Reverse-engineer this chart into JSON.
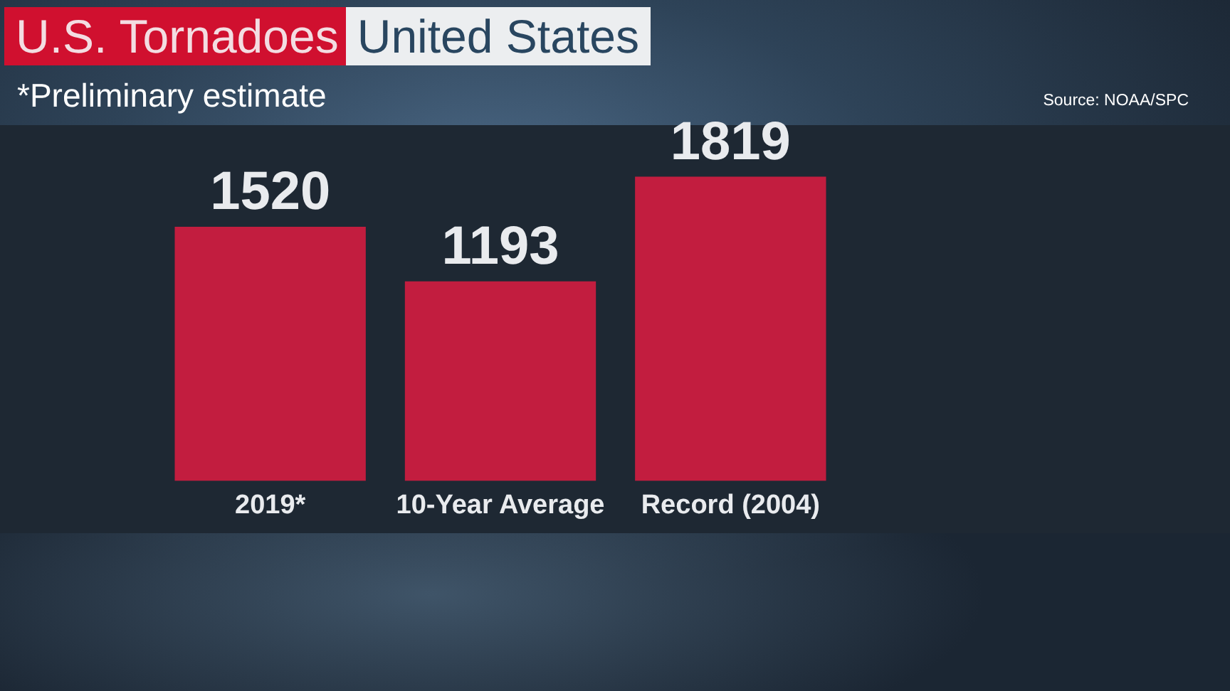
{
  "chart_data": {
    "type": "bar",
    "title": "U.S. Tornadoes",
    "subtitle": "United States",
    "annotations": [
      "*Preliminary estimate",
      "Source: NOAA/SPC"
    ],
    "categories": [
      "2019*",
      "10-Year Average",
      "Record (2004)"
    ],
    "values": [
      1520,
      1193,
      1819
    ],
    "color": "#c21d3f",
    "data_labels": true,
    "tick_labels": "x"
  }
}
